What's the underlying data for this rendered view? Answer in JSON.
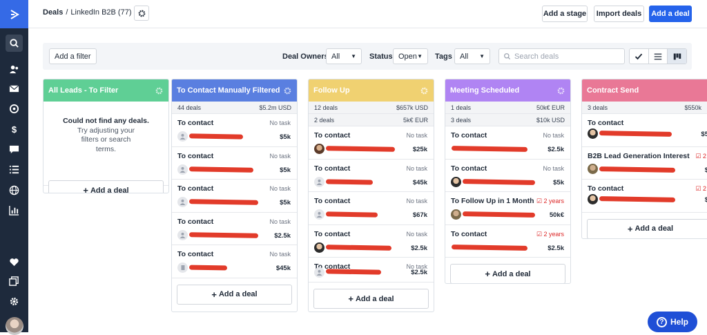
{
  "header": {
    "breadcrumb_root": "Deals",
    "breadcrumb_sep": "/",
    "pipeline": "LinkedIn B2B (77)",
    "add_stage": "Add a stage",
    "import_deals": "Import deals",
    "add_deal": "Add a deal"
  },
  "filters": {
    "add_filter": "Add a filter",
    "owners_label": "Deal Owners",
    "owners_value": "All",
    "status_label": "Status",
    "status_value": "Open",
    "tags_label": "Tags",
    "tags_value": "All",
    "search_placeholder": "Search deals"
  },
  "add_deal_label": "Add a deal",
  "columns": [
    {
      "title": "All Leads - To Filter",
      "color": "#5fcf95",
      "empty_line1": "Could not find any deals.",
      "empty_line2": "Try adjusting your",
      "empty_line3": "filters or search",
      "empty_line4": "terms."
    },
    {
      "title": "To Contact Manually Filtered",
      "color": "#5a7fe0",
      "stats": [
        {
          "count": "44 deals",
          "value": "$5.2m USD"
        }
      ],
      "cards": [
        {
          "title": "To contact",
          "task": "No task",
          "amount": "$5k"
        },
        {
          "title": "To contact",
          "task": "No task",
          "amount": "$5k"
        },
        {
          "title": "To contact",
          "task": "No task",
          "amount": "$5k"
        },
        {
          "title": "To contact",
          "task": "No task",
          "amount": "$2.5k"
        },
        {
          "title": "To contact",
          "task": "No task",
          "amount": "$45k"
        }
      ]
    },
    {
      "title": "Follow Up",
      "color": "#f0d171",
      "stats": [
        {
          "count": "12 deals",
          "value": "$657k USD"
        },
        {
          "count": "2 deals",
          "value": "5k€ EUR"
        }
      ],
      "cards": [
        {
          "title": "To contact",
          "task": "No task",
          "amount": "$25k"
        },
        {
          "title": "To contact",
          "task": "No task",
          "amount": "$45k"
        },
        {
          "title": "To contact",
          "task": "No task",
          "amount": "$67k"
        },
        {
          "title": "To contact",
          "task": "No task",
          "amount": "$2.5k"
        },
        {
          "title": "To contact",
          "task": "No task",
          "amount": "$2.5k"
        }
      ]
    },
    {
      "title": "Meeting Scheduled",
      "color": "#b084f3",
      "stats": [
        {
          "count": "1 deals",
          "value": "50k€ EUR"
        },
        {
          "count": "3 deals",
          "value": "$10k USD"
        }
      ],
      "cards": [
        {
          "title": "To contact",
          "task": "No task",
          "amount": "$2.5k"
        },
        {
          "title": "To contact",
          "task": "No task",
          "amount": "$5k"
        },
        {
          "title": "To Follow Up in 1 Month",
          "task": "2 years",
          "amount": "50k€"
        },
        {
          "title": "To contact",
          "task": "2 years",
          "amount": "$2.5k"
        }
      ]
    },
    {
      "title": "Contract Send",
      "color": "#e97896",
      "stats": [
        {
          "count": "3 deals",
          "value": "$550k"
        }
      ],
      "cards": [
        {
          "title": "To contact",
          "task": "",
          "amount": "$5"
        },
        {
          "title": "B2B Lead Generation Interest",
          "task": "2 y",
          "amount": "$"
        },
        {
          "title": "To contact",
          "task": "2 y",
          "amount": "$"
        }
      ]
    }
  ],
  "help": "Help"
}
